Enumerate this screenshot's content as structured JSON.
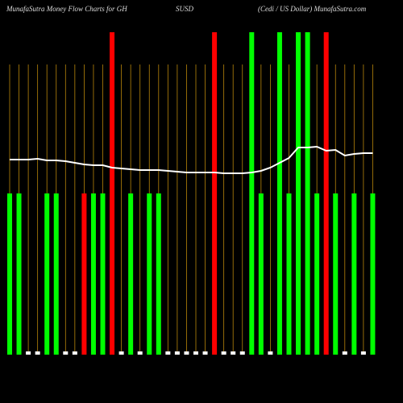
{
  "chart_data": {
    "type": "bar",
    "title_parts": [
      "MunafaSutra  Money Flow  Charts for GH",
      "SUSD",
      "(Cedi  / US Dollar) MunafaSutra.com"
    ],
    "ylim": [
      0,
      100
    ],
    "values": [
      50,
      50,
      1,
      1,
      50,
      50,
      1,
      1,
      50,
      50,
      50,
      100,
      1,
      50,
      1,
      50,
      50,
      1,
      1,
      1,
      1,
      1,
      100,
      1,
      1,
      1,
      100,
      50,
      1,
      100,
      50,
      100,
      100,
      50,
      100,
      50,
      1,
      50,
      1,
      50
    ],
    "colors": [
      "#00ff00",
      "#00ff00",
      "#ffffff",
      "#ffffff",
      "#00ff00",
      "#00ff00",
      "#ffffff",
      "#ffffff",
      "#ff0000",
      "#00ff00",
      "#00ff00",
      "#ff0000",
      "#ffffff",
      "#00ff00",
      "#ffffff",
      "#00ff00",
      "#00ff00",
      "#ffffff",
      "#ffffff",
      "#ffffff",
      "#ffffff",
      "#ffffff",
      "#ff0000",
      "#ffffff",
      "#ffffff",
      "#ffffff",
      "#00ff00",
      "#00ff00",
      "#ffffff",
      "#00ff00",
      "#00ff00",
      "#00ff00",
      "#00ff00",
      "#00ff00",
      "#ff0000",
      "#00ff00",
      "#ffffff",
      "#00ff00",
      "#ffffff",
      "#00ff00"
    ],
    "line": {
      "color": "#ffffff",
      "values": [
        60.5,
        60.5,
        60.5,
        60.75,
        60.25,
        60.25,
        60,
        59.5,
        59,
        58.75,
        58.75,
        58,
        57.75,
        57.5,
        57.25,
        57.25,
        57.25,
        57,
        56.75,
        56.5,
        56.5,
        56.5,
        56.5,
        56.25,
        56.25,
        56.25,
        56.5,
        57,
        58,
        59.5,
        61,
        64.25,
        64.25,
        64.5,
        63.25,
        63.5,
        61.75,
        62.25,
        62.5,
        62.5
      ]
    },
    "grid_color": "#b8860b"
  }
}
